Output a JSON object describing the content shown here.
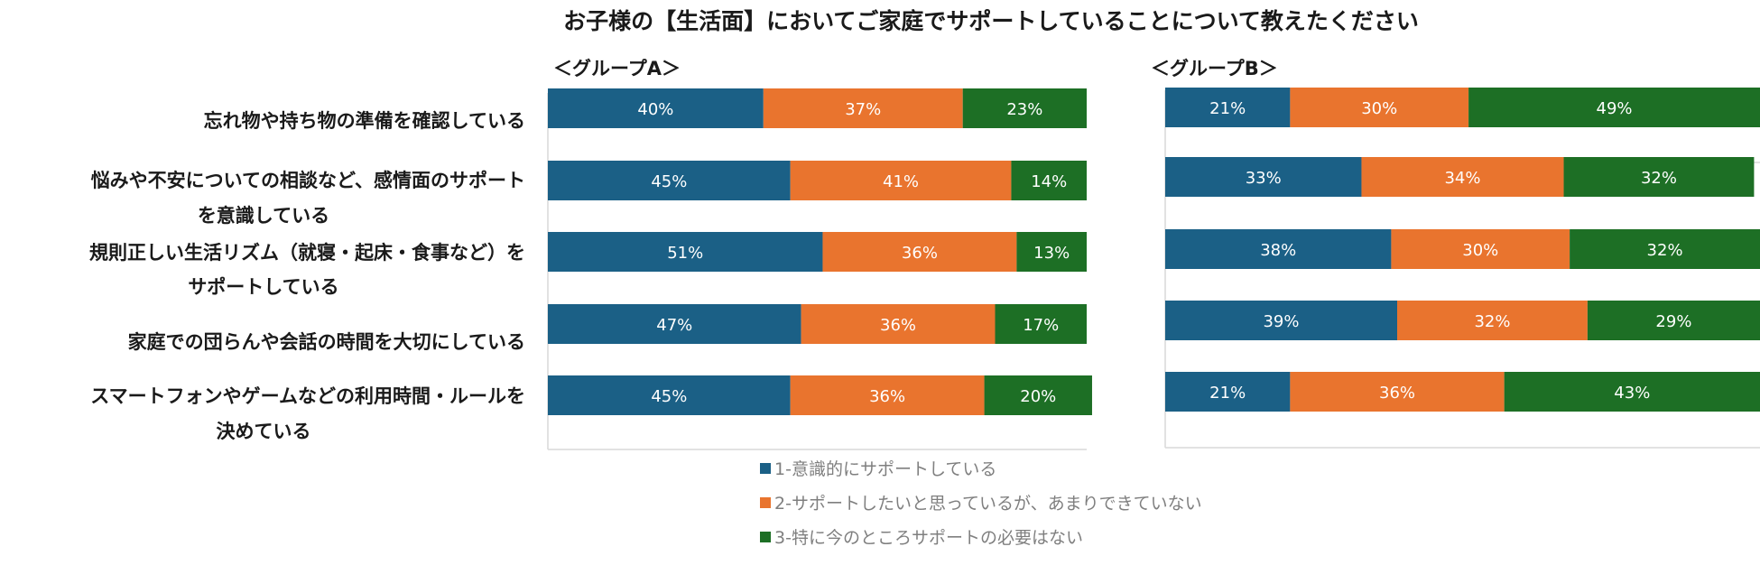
{
  "chart_data": {
    "type": "bar",
    "orientation": "horizontal",
    "stacked": true,
    "percent": true,
    "title": "お子様の【生活面】においてご家庭でサポートしていることについて教えたください",
    "categories": [
      [
        "忘れ物や持ち物の準備を確認している"
      ],
      [
        "悩みや不安についての相談など、感情面のサポート",
        "を意識している"
      ],
      [
        "規則正しい生活リズム（就寝・起床・食事など）を",
        "サポートしている"
      ],
      [
        "家庭での団らんや会話の時間を大切にしている"
      ],
      [
        "スマートフォンやゲームなどの利用時間・ルールを",
        "決めている"
      ]
    ],
    "groups": [
      {
        "name": "＜グループA＞",
        "series": [
          {
            "name": "1-意識的にサポートしている",
            "values": [
              40,
              45,
              51,
              47,
              45
            ]
          },
          {
            "name": "2-サポートしたいと思っているが、あまりできていない",
            "values": [
              37,
              41,
              36,
              36,
              36
            ]
          },
          {
            "name": "3-特に今のところサポートの必要はない",
            "values": [
              23,
              14,
              13,
              17,
              20
            ]
          }
        ]
      },
      {
        "name": "＜グループB＞",
        "series": [
          {
            "name": "1-意識的にサポートしている",
            "values": [
              21,
              33,
              38,
              39,
              21
            ]
          },
          {
            "name": "2-サポートしたいと思っているが、あまりできていない",
            "values": [
              30,
              34,
              30,
              32,
              36
            ]
          },
          {
            "name": "3-特に今のところサポートの必要はない",
            "values": [
              49,
              32,
              32,
              29,
              43
            ]
          }
        ]
      }
    ],
    "colors": [
      "#1b6086",
      "#e9742e",
      "#1d6f25"
    ],
    "value_suffix": "%",
    "xlim": [
      0,
      100
    ],
    "legend_position": "bottom"
  }
}
